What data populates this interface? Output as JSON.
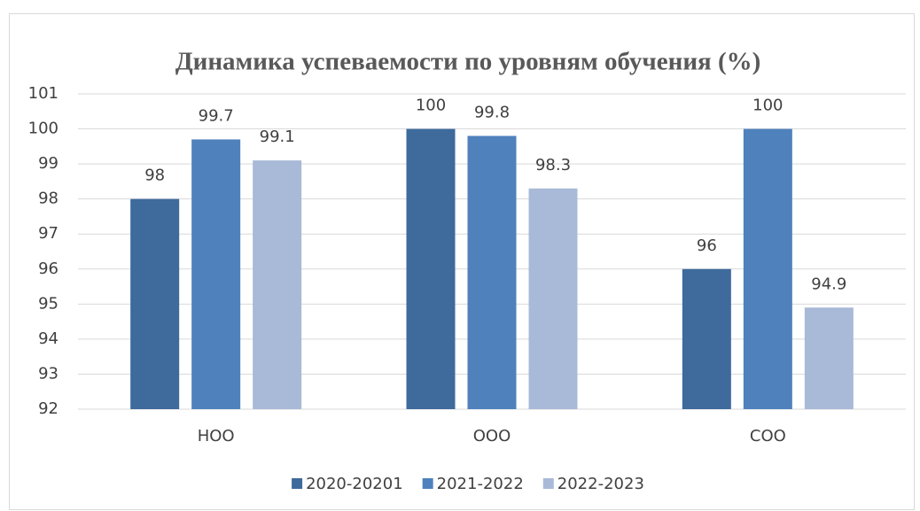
{
  "chart_data": {
    "type": "bar",
    "title": "Динамика успеваемости по уровням обучения (%)",
    "categories": [
      "НОО",
      "ООО",
      "СОО"
    ],
    "series": [
      {
        "name": "2020-20201",
        "color": "#3e6a9c",
        "values": [
          98,
          100,
          96
        ]
      },
      {
        "name": "2021-2022",
        "color": "#4f81bd",
        "values": [
          99.7,
          99.8,
          100
        ]
      },
      {
        "name": "2022-2023",
        "color": "#a9b9d8",
        "values": [
          99.1,
          98.3,
          94.9
        ]
      }
    ],
    "ylim": [
      92,
      101
    ],
    "yticks": [
      92,
      93,
      94,
      95,
      96,
      97,
      98,
      99,
      100,
      101
    ],
    "grid": true,
    "legend": "bottom"
  }
}
